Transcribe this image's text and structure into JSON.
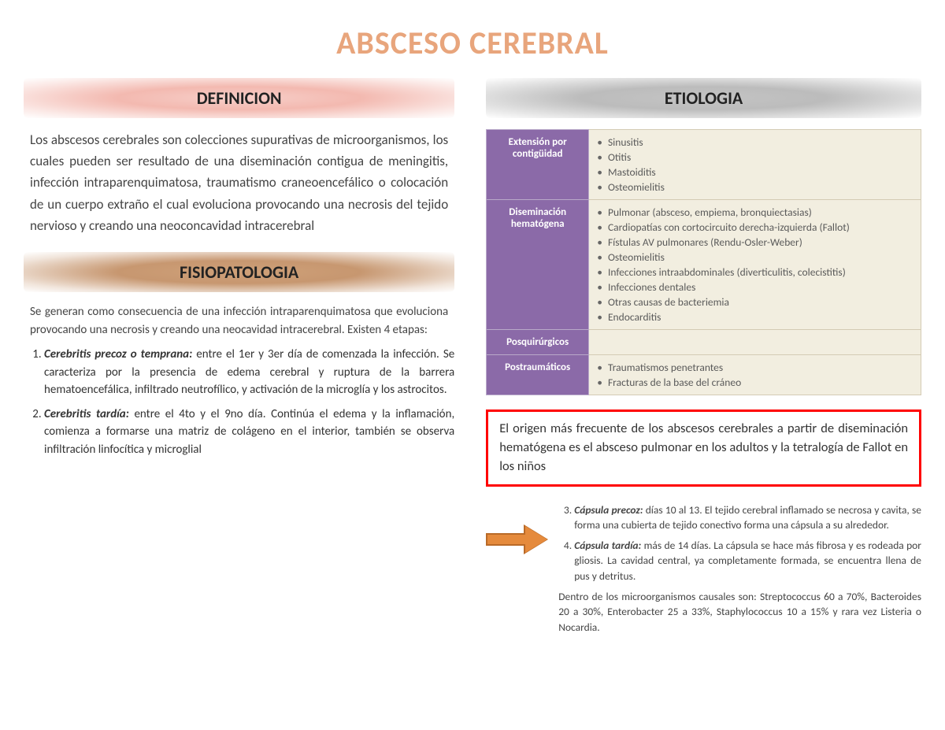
{
  "title": "ABSCESO CEREBRAL",
  "colors": {
    "title": "#e8a57c",
    "pink_header_bg": "#f3b9b0",
    "gray_header_bg": "#bcbcbc",
    "tan_header_bg": "#c79770",
    "table_header_bg": "#8b6aa8",
    "table_cell_bg": "#f2eee0",
    "highlight_border": "#ff0000",
    "arrow_fill": "#e58a3c",
    "arrow_border": "#b96a28"
  },
  "sections": {
    "definicion": {
      "heading": "DEFINICION",
      "text": "Los abscesos cerebrales son colecciones supurativas de microorganismos, los cuales pueden ser resultado de una diseminación contigua de meningitis, infección intraparenquimatosa, traumatismo craneoencefálico o colocación de un cuerpo extraño el cual evoluciona provocando una necrosis del tejido nervioso y creando una neoconcavidad intracerebral"
    },
    "etiologia": {
      "heading": "ETIOLOGIA",
      "rows": [
        {
          "category": "Extensión por contigüidad",
          "items": [
            "Sinusitis",
            "Otitis",
            "Mastoiditis",
            "Osteomielitis"
          ]
        },
        {
          "category": "Diseminación hematógena",
          "items": [
            "Pulmonar (absceso, empiema, bronquiectasias)",
            "Cardiopatías con cortocircuito derecha-izquierda (Fallot)",
            "Fístulas AV pulmonares (Rendu-Osler-Weber)",
            "Osteomielitis",
            "Infecciones intraabdominales (diverticulitis, colecistitis)",
            "Infecciones dentales",
            "Otras causas de bacteriemia",
            "Endocarditis"
          ]
        },
        {
          "category": "Posquirúrgicos",
          "items": []
        },
        {
          "category": "Postraumáticos",
          "items": [
            "Traumatismos penetrantes",
            "Fracturas de la base del cráneo"
          ]
        }
      ],
      "highlight": "El origen más frecuente de los abscesos cerebrales a partir de diseminación hematógena es el absceso pulmonar en los adultos y la tetralogía de Fallot en los niños"
    },
    "fisiopatologia": {
      "heading": "FISIOPATOLOGIA",
      "intro": "Se generan como consecuencia de una infección intraparenquimatosa que evoluciona provocando una necrosis y creando una neocavidad intracerebral. Existen 4 etapas:",
      "stages_left": [
        {
          "title": "Cerebritis precoz o temprana:",
          "text": " entre el 1er y 3er día de comenzada la infección. Se caracteriza por la presencia de edema cerebral y ruptura de la barrera hematoencefálica, infiltrado neutrofílico, y activación de la microglía y los astrocitos."
        },
        {
          "title": "Cerebritis tardía:",
          "text": " entre el 4to y el 9no día. Continúa el edema y la inflamación, comienza a formarse una matriz de colágeno en el interior, también se observa infiltración linfocítica y microglial"
        }
      ],
      "stages_right": [
        {
          "num": "3",
          "title": "Cápsula precoz:",
          "text": " días 10 al 13. El tejido cerebral inflamado se necrosa y cavita, se forma una cubierta de tejido conectivo forma una cápsula a su alrededor."
        },
        {
          "num": "4",
          "title": "Cápsula tardía:",
          "text": " más de 14 días. La cápsula se hace más fibrosa y es rodeada por gliosis. La cavidad central, ya completamente formada, se encuentra llena de pus y detritus."
        }
      ],
      "causal": "Dentro de los microorganismos causales son: Streptococcus 60 a 70%, Bacteroides 20 a 30%, Enterobacter 25 a 33%, Staphylococcus 10 a 15% y rara vez Listeria o Nocardia."
    }
  }
}
